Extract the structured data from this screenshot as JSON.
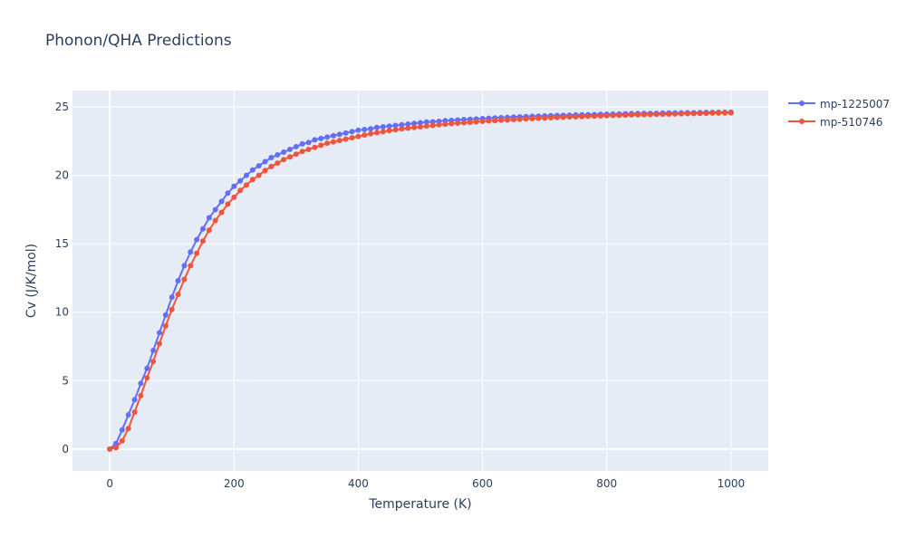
{
  "chart_data": {
    "type": "line",
    "title": "Phonon/QHA Predictions",
    "xlabel": "Temperature (K)",
    "ylabel": "Cv (J/K/mol)",
    "xlim": [
      -60,
      1060
    ],
    "ylim": [
      -1.6,
      26.2
    ],
    "xticks": [
      0,
      200,
      400,
      600,
      800,
      1000
    ],
    "yticks": [
      0,
      5,
      10,
      15,
      20,
      25
    ],
    "grid": true,
    "legend": "top-right",
    "x": [
      0,
      10,
      20,
      30,
      40,
      50,
      60,
      70,
      80,
      90,
      100,
      110,
      120,
      130,
      140,
      150,
      160,
      170,
      180,
      190,
      200,
      210,
      220,
      230,
      240,
      250,
      260,
      270,
      280,
      290,
      300,
      310,
      320,
      330,
      340,
      350,
      360,
      370,
      380,
      390,
      400,
      410,
      420,
      430,
      440,
      450,
      460,
      470,
      480,
      490,
      500,
      510,
      520,
      530,
      540,
      550,
      560,
      570,
      580,
      590,
      600,
      610,
      620,
      630,
      640,
      650,
      660,
      670,
      680,
      690,
      700,
      710,
      720,
      730,
      740,
      750,
      760,
      770,
      780,
      790,
      800,
      810,
      820,
      830,
      840,
      850,
      860,
      870,
      880,
      890,
      900,
      910,
      920,
      930,
      940,
      950,
      960,
      970,
      980,
      990,
      1000
    ],
    "series": [
      {
        "name": "mp-1225007",
        "color": "#636efa",
        "values": [
          0.0,
          0.4,
          1.4,
          2.5,
          3.6,
          4.8,
          5.9,
          7.2,
          8.5,
          9.8,
          11.1,
          12.3,
          13.4,
          14.4,
          15.3,
          16.1,
          16.9,
          17.5,
          18.1,
          18.7,
          19.2,
          19.6,
          20.0,
          20.4,
          20.7,
          21.0,
          21.3,
          21.5,
          21.7,
          21.9,
          22.1,
          22.3,
          22.4,
          22.6,
          22.7,
          22.8,
          22.9,
          23.0,
          23.1,
          23.2,
          23.3,
          23.35,
          23.4,
          23.5,
          23.55,
          23.6,
          23.65,
          23.7,
          23.75,
          23.8,
          23.85,
          23.9,
          23.92,
          23.95,
          24.0,
          24.02,
          24.05,
          24.08,
          24.1,
          24.12,
          24.15,
          24.17,
          24.2,
          24.22,
          24.24,
          24.26,
          24.28,
          24.3,
          24.32,
          24.33,
          24.35,
          24.36,
          24.38,
          24.39,
          24.4,
          24.42,
          24.43,
          24.44,
          24.45,
          24.46,
          24.47,
          24.48,
          24.49,
          24.5,
          24.51,
          24.52,
          24.53,
          24.53,
          24.54,
          24.55,
          24.56,
          24.56,
          24.57,
          24.58,
          24.58,
          24.59,
          24.6,
          24.6,
          24.61,
          24.61,
          24.62
        ]
      },
      {
        "name": "mp-510746",
        "color": "#ef553b",
        "values": [
          0.0,
          0.1,
          0.6,
          1.5,
          2.7,
          3.9,
          5.2,
          6.4,
          7.7,
          9.0,
          10.2,
          11.3,
          12.4,
          13.4,
          14.3,
          15.2,
          16.0,
          16.7,
          17.3,
          17.9,
          18.4,
          18.9,
          19.3,
          19.7,
          20.0,
          20.35,
          20.65,
          20.9,
          21.15,
          21.35,
          21.55,
          21.75,
          21.9,
          22.05,
          22.2,
          22.35,
          22.45,
          22.55,
          22.65,
          22.75,
          22.85,
          22.95,
          23.05,
          23.12,
          23.2,
          23.27,
          23.33,
          23.4,
          23.45,
          23.5,
          23.55,
          23.6,
          23.65,
          23.7,
          23.74,
          23.78,
          23.82,
          23.85,
          23.88,
          23.92,
          23.95,
          23.98,
          24.0,
          24.03,
          24.05,
          24.08,
          24.1,
          24.12,
          24.15,
          24.17,
          24.19,
          24.21,
          24.23,
          24.25,
          24.27,
          24.28,
          24.3,
          24.32,
          24.33,
          24.35,
          24.36,
          24.38,
          24.39,
          24.4,
          24.42,
          24.43,
          24.44,
          24.45,
          24.46,
          24.47,
          24.48,
          24.49,
          24.5,
          24.51,
          24.52,
          24.53,
          24.54,
          24.55,
          24.55,
          24.56,
          24.57
        ]
      }
    ]
  }
}
